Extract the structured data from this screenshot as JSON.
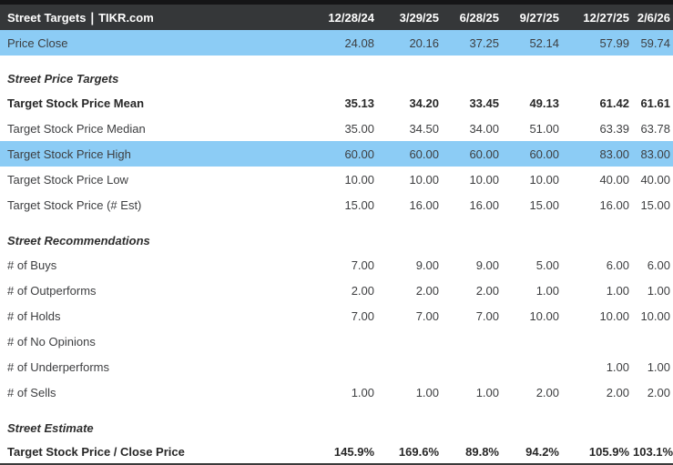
{
  "header": {
    "title": "Street Targets",
    "divider": "|",
    "brand": "TIKR.com",
    "dates": [
      "12/28/24",
      "3/29/25",
      "6/28/25",
      "9/27/25",
      "12/27/25",
      "2/6/26"
    ]
  },
  "colors": {
    "header_bg": "#353739",
    "header_text": "#ffffff",
    "highlight_row": "#8cccf5",
    "top_border": "#151517",
    "bottom_border": "#3a3a3a",
    "body_text": "#3d3e40",
    "bold_text": "#272727"
  },
  "table": {
    "rows": [
      {
        "type": "data",
        "label": "Price Close",
        "highlight": true,
        "bold": false,
        "values": [
          "24.08",
          "20.16",
          "37.25",
          "52.14",
          "57.99",
          "59.74"
        ]
      },
      {
        "type": "spacer"
      },
      {
        "type": "section",
        "label": "Street Price Targets"
      },
      {
        "type": "data",
        "label": "Target Stock Price Mean",
        "highlight": false,
        "bold": true,
        "values": [
          "35.13",
          "34.20",
          "33.45",
          "49.13",
          "61.42",
          "61.61"
        ]
      },
      {
        "type": "data",
        "label": "Target Stock Price Median",
        "highlight": false,
        "bold": false,
        "values": [
          "35.00",
          "34.50",
          "34.00",
          "51.00",
          "63.39",
          "63.78"
        ]
      },
      {
        "type": "data",
        "label": "Target Stock Price High",
        "highlight": true,
        "bold": false,
        "values": [
          "60.00",
          "60.00",
          "60.00",
          "60.00",
          "83.00",
          "83.00"
        ]
      },
      {
        "type": "data",
        "label": "Target Stock Price Low",
        "highlight": false,
        "bold": false,
        "values": [
          "10.00",
          "10.00",
          "10.00",
          "10.00",
          "40.00",
          "40.00"
        ]
      },
      {
        "type": "data",
        "label": "Target Stock Price (# Est)",
        "highlight": false,
        "bold": false,
        "values": [
          "15.00",
          "16.00",
          "16.00",
          "15.00",
          "16.00",
          "15.00"
        ]
      },
      {
        "type": "spacer"
      },
      {
        "type": "section",
        "label": "Street Recommendations"
      },
      {
        "type": "data",
        "label": "# of Buys",
        "highlight": false,
        "bold": false,
        "values": [
          "7.00",
          "9.00",
          "9.00",
          "5.00",
          "6.00",
          "6.00"
        ]
      },
      {
        "type": "data",
        "label": "# of Outperforms",
        "highlight": false,
        "bold": false,
        "values": [
          "2.00",
          "2.00",
          "2.00",
          "1.00",
          "1.00",
          "1.00"
        ]
      },
      {
        "type": "data",
        "label": "# of Holds",
        "highlight": false,
        "bold": false,
        "values": [
          "7.00",
          "7.00",
          "7.00",
          "10.00",
          "10.00",
          "10.00"
        ]
      },
      {
        "type": "data",
        "label": "# of No Opinions",
        "highlight": false,
        "bold": false,
        "values": [
          "",
          "",
          "",
          "",
          "",
          ""
        ]
      },
      {
        "type": "data",
        "label": "# of Underperforms",
        "highlight": false,
        "bold": false,
        "values": [
          "",
          "",
          "",
          "",
          "1.00",
          "1.00"
        ]
      },
      {
        "type": "data",
        "label": "# of Sells",
        "highlight": false,
        "bold": false,
        "values": [
          "1.00",
          "1.00",
          "1.00",
          "2.00",
          "2.00",
          "2.00"
        ]
      },
      {
        "type": "spacer"
      },
      {
        "type": "section",
        "label": "Street Estimate"
      },
      {
        "type": "data",
        "label": "Target Stock Price / Close Price",
        "highlight": false,
        "bold": true,
        "values": [
          "145.9%",
          "169.6%",
          "89.8%",
          "94.2%",
          "105.9%",
          "103.1%"
        ]
      }
    ]
  }
}
